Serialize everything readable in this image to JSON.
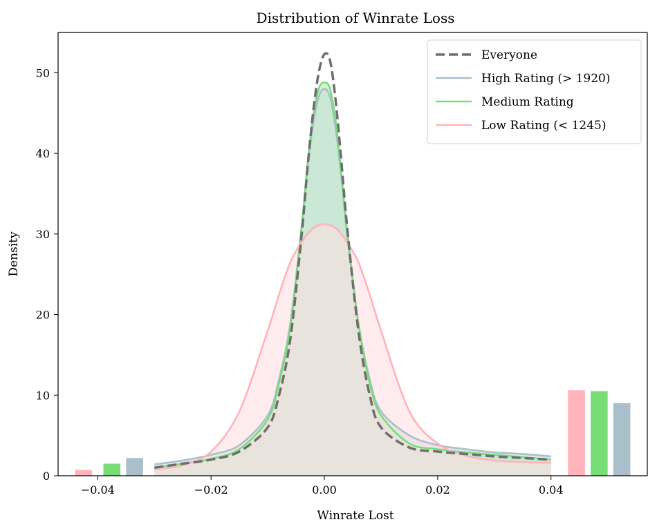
{
  "chart_data": {
    "type": "line",
    "title": "Distribution of Winrate Loss",
    "xlabel": "Winrate Lost",
    "ylabel": "Density",
    "xlim": [
      -0.047,
      0.057
    ],
    "ylim": [
      0,
      55
    ],
    "x_ticks": [
      -0.04,
      -0.02,
      0.0,
      0.02,
      0.04
    ],
    "x_tick_labels": [
      "−0.04",
      "−0.02",
      "0.00",
      "0.02",
      "0.04"
    ],
    "y_ticks": [
      0,
      10,
      20,
      30,
      40,
      50
    ],
    "y_tick_labels": [
      "0",
      "10",
      "20",
      "30",
      "40",
      "50"
    ],
    "grid": false,
    "legend_position": "top-right",
    "series": [
      {
        "name": "Everyone",
        "color": "#6e6e6e",
        "style": "dashed",
        "filled": false,
        "x": [
          -0.03,
          -0.025,
          -0.02,
          -0.015,
          -0.01,
          -0.008,
          -0.006,
          -0.004,
          -0.003,
          -0.002,
          -0.001,
          0.0,
          0.001,
          0.002,
          0.003,
          0.004,
          0.006,
          0.008,
          0.01,
          0.015,
          0.02,
          0.025,
          0.03,
          0.035,
          0.04
        ],
        "y": [
          1.0,
          1.5,
          2.0,
          3.0,
          6.0,
          10.0,
          17.0,
          30.0,
          38.0,
          45.0,
          50.0,
          52.3,
          51.5,
          46.5,
          39.0,
          31.0,
          18.0,
          10.0,
          6.0,
          3.5,
          3.0,
          2.7,
          2.4,
          2.2,
          2.0
        ]
      },
      {
        "name": "High Rating (> 1920)",
        "color": "#a9bfca",
        "style": "solid",
        "filled": true,
        "fill_color": "#c6dbe6",
        "x": [
          -0.03,
          -0.025,
          -0.02,
          -0.015,
          -0.01,
          -0.008,
          -0.006,
          -0.004,
          -0.003,
          -0.002,
          -0.001,
          0.0,
          0.001,
          0.002,
          0.003,
          0.004,
          0.006,
          0.008,
          0.01,
          0.015,
          0.02,
          0.025,
          0.03,
          0.035,
          0.04
        ],
        "y": [
          1.4,
          1.9,
          2.6,
          3.8,
          7.5,
          12.0,
          19.0,
          31.0,
          38.0,
          43.5,
          47.0,
          48.0,
          47.0,
          43.0,
          37.0,
          30.0,
          19.0,
          12.0,
          8.0,
          5.0,
          3.8,
          3.3,
          2.9,
          2.7,
          2.4
        ]
      },
      {
        "name": "Medium Rating",
        "color": "#77dd77",
        "style": "solid",
        "filled": true,
        "fill_color": "#bfe8c4",
        "x": [
          -0.03,
          -0.025,
          -0.02,
          -0.015,
          -0.01,
          -0.008,
          -0.006,
          -0.004,
          -0.003,
          -0.002,
          -0.001,
          0.0,
          0.001,
          0.002,
          0.003,
          0.004,
          0.006,
          0.008,
          0.01,
          0.015,
          0.02,
          0.025,
          0.03,
          0.035,
          0.04
        ],
        "y": [
          1.0,
          1.5,
          2.1,
          3.3,
          7.0,
          11.5,
          18.5,
          31.0,
          38.5,
          44.5,
          48.0,
          48.8,
          48.0,
          44.0,
          37.5,
          30.5,
          19.0,
          11.5,
          7.5,
          4.0,
          3.3,
          2.9,
          2.6,
          2.3,
          2.0
        ]
      },
      {
        "name": "Low Rating (< 1245)",
        "color": "#ffb3ba",
        "style": "solid",
        "filled": true,
        "fill_color": "#fddfe3",
        "x": [
          -0.03,
          -0.025,
          -0.02,
          -0.015,
          -0.01,
          -0.008,
          -0.006,
          -0.004,
          -0.002,
          0.0,
          0.002,
          0.004,
          0.006,
          0.008,
          0.01,
          0.015,
          0.02,
          0.025,
          0.03,
          0.035,
          0.04
        ],
        "y": [
          0.8,
          1.3,
          3.0,
          8.0,
          18.0,
          22.5,
          26.5,
          29.0,
          30.7,
          31.2,
          30.7,
          29.0,
          26.5,
          22.5,
          18.0,
          8.0,
          4.0,
          2.5,
          1.9,
          1.7,
          1.6
        ]
      }
    ],
    "tail_bars": [
      {
        "series": "Low Rating (< 1245)",
        "x": -0.0425,
        "value": 0.7
      },
      {
        "series": "Medium Rating",
        "x": -0.0375,
        "value": 1.5
      },
      {
        "series": "High Rating (> 1920)",
        "x": -0.0335,
        "value": 2.2
      },
      {
        "series": "Low Rating (< 1245)",
        "x": 0.0445,
        "value": 10.6
      },
      {
        "series": "Medium Rating",
        "x": 0.0485,
        "value": 10.5
      },
      {
        "series": "High Rating (> 1920)",
        "x": 0.0525,
        "value": 9.0
      }
    ],
    "tail_bar_width": 0.003
  }
}
